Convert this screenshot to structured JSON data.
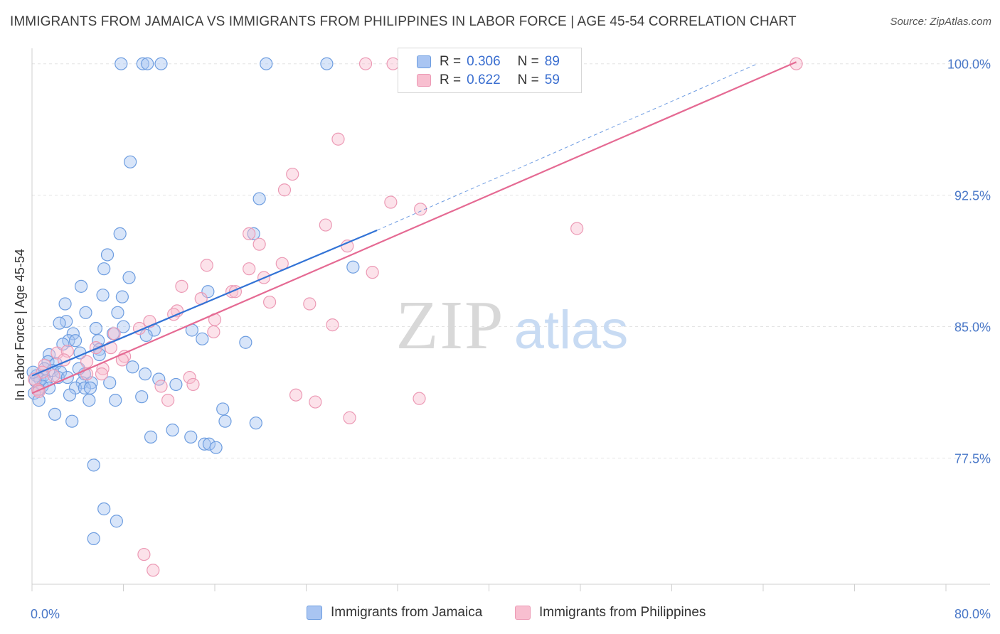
{
  "title": "IMMIGRANTS FROM JAMAICA VS IMMIGRANTS FROM PHILIPPINES IN LABOR FORCE | AGE 45-54 CORRELATION CHART",
  "source": "Source: ZipAtlas.com",
  "watermark": {
    "zip": "ZIP",
    "atlas": "atlas"
  },
  "legend": {
    "rows": [
      {
        "r_label": "R =",
        "r_value": "0.306",
        "n_label": "N =",
        "n_value": "89"
      },
      {
        "r_label": "R =",
        "r_value": "0.622",
        "n_label": "N =",
        "n_value": "59"
      }
    ]
  },
  "colors": {
    "jamaica_fill": "#a9c5f2",
    "jamaica_stroke": "#6d9de0",
    "jamaica_line": "#3273d6",
    "philippines_fill": "#f8bfd0",
    "philippines_stroke": "#ec9ab5",
    "philippines_line": "#e56a93",
    "axis_text": "#4a78c8",
    "grid": "#e4e4e4"
  },
  "chart_data": {
    "type": "scatter",
    "title": "IMMIGRANTS FROM JAMAICA VS IMMIGRANTS FROM PHILIPPINES IN LABOR FORCE | AGE 45-54 CORRELATION CHART",
    "xlabel": "",
    "ylabel": "In Labor Force | Age 45-54",
    "xlim": [
      0,
      80
    ],
    "ylim": [
      70.3,
      100.8
    ],
    "x_tick_labels": [
      "0.0%",
      "80.0%"
    ],
    "y_ticks": [
      77.5,
      85.0,
      92.5,
      100.0
    ],
    "y_tick_labels": [
      "77.5%",
      "85.0%",
      "92.5%",
      "100.0%"
    ],
    "grid": true,
    "legend_position": "top-center",
    "series": [
      {
        "name": "Immigrants from Jamaica",
        "r": 0.306,
        "n": 89,
        "trend": {
          "x0": 0.0,
          "y0": 82.2,
          "x1": 30.2,
          "y1": 90.5,
          "dashed_to_x": 63.5,
          "dashed_to_y": 100.0
        },
        "points": [
          [
            7.8,
            100.0
          ],
          [
            9.7,
            100.0
          ],
          [
            10.1,
            100.0
          ],
          [
            11.3,
            100.0
          ],
          [
            20.5,
            100.0
          ],
          [
            25.8,
            100.0
          ],
          [
            8.6,
            94.4
          ],
          [
            19.9,
            92.3
          ],
          [
            7.7,
            90.3
          ],
          [
            19.4,
            90.3
          ],
          [
            6.6,
            89.1
          ],
          [
            6.3,
            88.3
          ],
          [
            8.5,
            87.8
          ],
          [
            28.1,
            88.4
          ],
          [
            4.3,
            87.3
          ],
          [
            15.4,
            87.0
          ],
          [
            6.2,
            86.8
          ],
          [
            7.9,
            86.7
          ],
          [
            2.9,
            86.3
          ],
          [
            4.7,
            85.8
          ],
          [
            7.5,
            85.8
          ],
          [
            3.0,
            85.3
          ],
          [
            2.4,
            85.2
          ],
          [
            8.0,
            85.0
          ],
          [
            5.6,
            84.9
          ],
          [
            10.7,
            84.8
          ],
          [
            14.0,
            84.8
          ],
          [
            3.6,
            84.6
          ],
          [
            7.1,
            84.6
          ],
          [
            10.0,
            84.5
          ],
          [
            14.9,
            84.3
          ],
          [
            3.2,
            84.2
          ],
          [
            3.8,
            84.2
          ],
          [
            5.8,
            84.2
          ],
          [
            18.7,
            84.1
          ],
          [
            2.7,
            84.0
          ],
          [
            5.9,
            83.7
          ],
          [
            4.2,
            83.5
          ],
          [
            1.5,
            83.4
          ],
          [
            1.4,
            83.0
          ],
          [
            2.1,
            82.9
          ],
          [
            8.8,
            82.7
          ],
          [
            1.1,
            82.6
          ],
          [
            1.8,
            82.5
          ],
          [
            2.5,
            82.4
          ],
          [
            4.6,
            82.3
          ],
          [
            1.0,
            82.2
          ],
          [
            2.3,
            82.1
          ],
          [
            0.4,
            82.2
          ],
          [
            0.7,
            82.0
          ],
          [
            0.3,
            81.9
          ],
          [
            1.2,
            81.9
          ],
          [
            11.1,
            82.0
          ],
          [
            4.4,
            81.8
          ],
          [
            5.2,
            81.8
          ],
          [
            6.8,
            81.8
          ],
          [
            12.6,
            81.7
          ],
          [
            0.9,
            81.6
          ],
          [
            3.8,
            81.5
          ],
          [
            4.6,
            81.5
          ],
          [
            5.1,
            81.5
          ],
          [
            0.6,
            81.4
          ],
          [
            1.5,
            81.5
          ],
          [
            0.2,
            81.2
          ],
          [
            3.3,
            81.1
          ],
          [
            9.6,
            81.0
          ],
          [
            5.0,
            80.8
          ],
          [
            7.3,
            80.8
          ],
          [
            0.6,
            80.8
          ],
          [
            16.7,
            80.3
          ],
          [
            2.0,
            80.0
          ],
          [
            16.9,
            79.6
          ],
          [
            3.5,
            79.6
          ],
          [
            19.6,
            79.5
          ],
          [
            12.3,
            79.1
          ],
          [
            10.4,
            78.7
          ],
          [
            13.9,
            78.7
          ],
          [
            15.1,
            78.3
          ],
          [
            15.5,
            78.3
          ],
          [
            16.1,
            78.1
          ],
          [
            5.4,
            77.1
          ],
          [
            6.3,
            74.6
          ],
          [
            7.4,
            73.9
          ],
          [
            5.4,
            72.9
          ],
          [
            0.1,
            82.4
          ],
          [
            9.9,
            82.3
          ],
          [
            3.1,
            82.1
          ],
          [
            5.9,
            83.4
          ],
          [
            4.1,
            82.6
          ]
        ]
      },
      {
        "name": "Immigrants from Philippines",
        "r": 0.622,
        "n": 59,
        "trend": {
          "x0": 0.0,
          "y0": 81.2,
          "x1": 66.9,
          "y1": 100.1
        },
        "points": [
          [
            29.2,
            100.0
          ],
          [
            31.6,
            100.0
          ],
          [
            66.9,
            100.0
          ],
          [
            26.8,
            95.7
          ],
          [
            22.8,
            93.7
          ],
          [
            22.1,
            92.8
          ],
          [
            31.4,
            92.1
          ],
          [
            34.0,
            91.7
          ],
          [
            25.7,
            90.8
          ],
          [
            47.7,
            90.6
          ],
          [
            19.0,
            90.3
          ],
          [
            19.9,
            89.7
          ],
          [
            27.6,
            89.6
          ],
          [
            21.9,
            88.6
          ],
          [
            15.3,
            88.5
          ],
          [
            19.0,
            88.3
          ],
          [
            29.8,
            88.1
          ],
          [
            20.3,
            87.8
          ],
          [
            13.1,
            87.3
          ],
          [
            17.5,
            87.0
          ],
          [
            17.8,
            87.0
          ],
          [
            14.8,
            86.6
          ],
          [
            20.8,
            86.4
          ],
          [
            24.3,
            86.3
          ],
          [
            12.7,
            85.9
          ],
          [
            12.4,
            85.7
          ],
          [
            16.0,
            85.4
          ],
          [
            10.3,
            85.3
          ],
          [
            26.3,
            85.1
          ],
          [
            9.4,
            84.9
          ],
          [
            15.9,
            84.7
          ],
          [
            7.2,
            84.6
          ],
          [
            2.2,
            83.5
          ],
          [
            5.6,
            83.8
          ],
          [
            6.9,
            83.8
          ],
          [
            3.1,
            83.6
          ],
          [
            8.1,
            83.3
          ],
          [
            7.9,
            83.1
          ],
          [
            4.8,
            83.0
          ],
          [
            2.8,
            83.1
          ],
          [
            1.1,
            82.8
          ],
          [
            0.9,
            82.4
          ],
          [
            6.2,
            82.6
          ],
          [
            1.9,
            82.2
          ],
          [
            4.8,
            82.3
          ],
          [
            0.2,
            82.0
          ],
          [
            13.8,
            82.1
          ],
          [
            14.1,
            81.7
          ],
          [
            11.3,
            81.6
          ],
          [
            0.5,
            81.4
          ],
          [
            23.1,
            81.1
          ],
          [
            33.9,
            80.9
          ],
          [
            11.9,
            80.8
          ],
          [
            24.8,
            80.7
          ],
          [
            27.8,
            79.8
          ],
          [
            9.8,
            72.0
          ],
          [
            10.6,
            71.1
          ],
          [
            0.6,
            81.3
          ],
          [
            6.1,
            82.3
          ]
        ]
      }
    ]
  },
  "bottom_legend": {
    "jamaica": "Immigrants from Jamaica",
    "philippines": "Immigrants from Philippines"
  }
}
